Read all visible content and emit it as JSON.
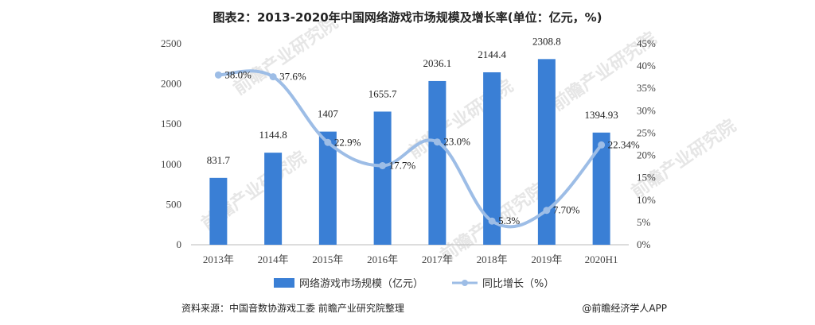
{
  "chart_data": {
    "type": "bar",
    "title": "图表2：2013-2020年中国网络游戏市场规模及增长率(单位：亿元，%)",
    "categories": [
      "2013年",
      "2014年",
      "2015年",
      "2016年",
      "2017年",
      "2018年",
      "2019年",
      "2020H1"
    ],
    "series": [
      {
        "name": "网络游戏市场规模（亿元）",
        "type": "bar",
        "axis": "left",
        "values": [
          831.7,
          1144.8,
          1407,
          1655.7,
          2036.1,
          2144.4,
          2308.8,
          1394.93
        ],
        "labels": [
          "831.7",
          "1144.8",
          "1407",
          "1655.7",
          "2036.1",
          "2144.4",
          "2308.8",
          "1394.93"
        ],
        "color": "#3a7fd5"
      },
      {
        "name": "同比增长（%）",
        "type": "line",
        "axis": "right",
        "values": [
          38.0,
          37.6,
          22.9,
          17.7,
          23.0,
          5.3,
          7.7,
          22.34
        ],
        "labels": [
          "38.0%",
          "37.6%",
          "22.9%",
          "17.7%",
          "23.0%",
          "5.3%",
          "7.70%",
          "22.34%"
        ],
        "color": "#9dbde6"
      }
    ],
    "y_left": {
      "min": 0,
      "max": 2500,
      "ticks": [
        "0",
        "500",
        "1000",
        "1500",
        "2000",
        "2500"
      ]
    },
    "y_right": {
      "min": 0,
      "max": 45,
      "ticks": [
        "0%",
        "5%",
        "10%",
        "15%",
        "20%",
        "25%",
        "30%",
        "35%",
        "40%",
        "45%"
      ]
    },
    "grid": false,
    "legend_position": "bottom"
  },
  "legend": {
    "bar_label": "网络游戏市场规模（亿元）",
    "line_label": "同比增长（%）"
  },
  "footer": {
    "source": "资料来源：中国音数协游戏工委 前瞻产业研究院整理",
    "credit": "@前瞻经济学人APP"
  },
  "watermark": "前瞻产业研究院"
}
